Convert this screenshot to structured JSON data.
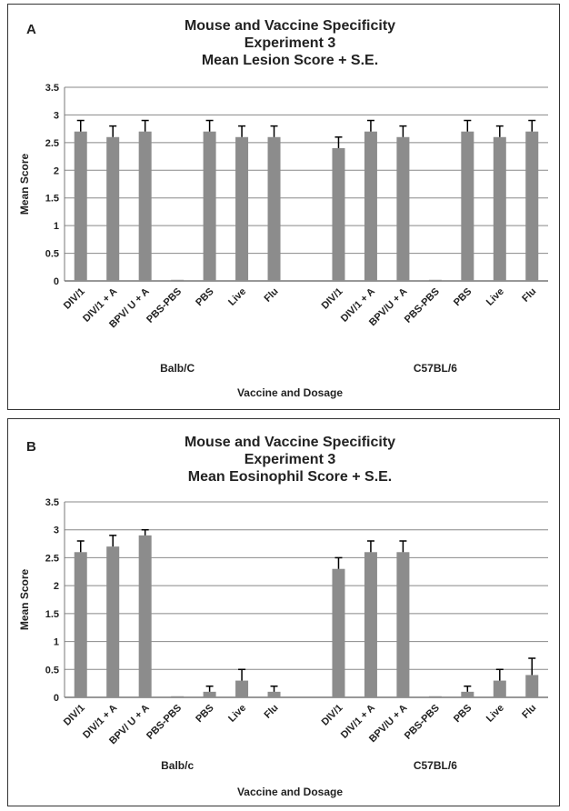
{
  "chart_data": [
    {
      "type": "bar",
      "panel_letter": "A",
      "title_lines": [
        "Mouse and Vaccine Specificity",
        "Experiment 3",
        "Mean Lesion Score + S.E."
      ],
      "ylabel": "Mean Score",
      "xlabel": "Vaccine and Dosage",
      "ylim": [
        0,
        3.5
      ],
      "yticks": [
        "0",
        "0.5",
        "1",
        "1.5",
        "2",
        "2.5",
        "3",
        "3.5"
      ],
      "groups": [
        "Balb/C",
        "C57BL/6"
      ],
      "categories": [
        "DIV/1",
        "DIV/1 + A",
        "BPV/ U + A",
        "PBS-PBS",
        "PBS",
        "Live",
        "Flu",
        "",
        "DIV/1",
        "DIV/1 + A",
        "BPV/U + A",
        "PBS-PBS",
        "PBS",
        "Live",
        "Flu"
      ],
      "values": [
        2.7,
        2.6,
        2.7,
        0.02,
        2.7,
        2.6,
        2.6,
        null,
        2.4,
        2.7,
        2.6,
        0.02,
        2.7,
        2.6,
        2.7
      ],
      "errors": [
        0.2,
        0.2,
        0.2,
        0,
        0.2,
        0.2,
        0.2,
        null,
        0.2,
        0.2,
        0.2,
        0,
        0.2,
        0.2,
        0.2
      ],
      "bar_color": "#8c8c8c",
      "grid": true
    },
    {
      "type": "bar",
      "panel_letter": "B",
      "title_lines": [
        "Mouse and Vaccine Specificity",
        "Experiment 3",
        "Mean Eosinophil Score + S.E."
      ],
      "ylabel": "Mean Score",
      "xlabel": "Vaccine and Dosage",
      "ylim": [
        0,
        3.5
      ],
      "yticks": [
        "0",
        "0.5",
        "1",
        "1.5",
        "2",
        "2.5",
        "3",
        "3.5"
      ],
      "groups": [
        "Balb/c",
        "C57BL/6"
      ],
      "categories": [
        "DIV/1",
        "DIV/1 + A",
        "BPV/ U + A",
        "PBS-PBS",
        "PBS",
        "Live",
        "Flu",
        "",
        "DIV/1",
        "DIV/1 + A",
        "BPV/U + A",
        "PBS-PBS",
        "PBS",
        "Live",
        "Flu"
      ],
      "values": [
        2.6,
        2.7,
        2.9,
        0.02,
        0.1,
        0.3,
        0.1,
        null,
        2.3,
        2.6,
        2.6,
        0.02,
        0.1,
        0.3,
        0.4
      ],
      "errors": [
        0.2,
        0.2,
        0.1,
        0,
        0.1,
        0.2,
        0.1,
        null,
        0.2,
        0.2,
        0.2,
        0,
        0.1,
        0.2,
        0.3
      ],
      "bar_color": "#8c8c8c",
      "grid": true
    }
  ]
}
